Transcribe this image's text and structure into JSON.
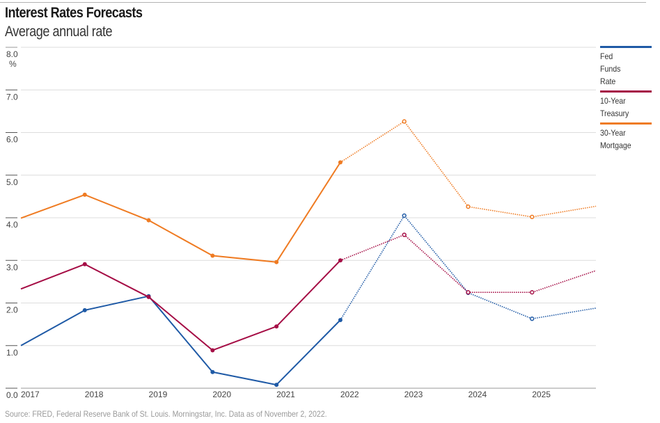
{
  "header": {
    "title": "Interest Rates Forecasts",
    "subtitle": "Average annual rate"
  },
  "footer": {
    "source": "Source: FRED, Federal Reserve Bank of St. Louis. Morningstar, Inc. Data as of November 2, 2022."
  },
  "chart_data": {
    "type": "line",
    "title": "Interest Rates Forecasts",
    "subtitle": "Average annual rate",
    "xlabel": "",
    "ylabel": "%",
    "x": [
      2017,
      2018,
      2019,
      2020,
      2021,
      2022,
      2023,
      2024,
      2025,
      2026
    ],
    "x_tick_labels": [
      "2017",
      "2018",
      "2019",
      "2020",
      "2021",
      "2022",
      "2023",
      "2024",
      "2025"
    ],
    "xlim": [
      2017,
      2026
    ],
    "ylim": [
      0,
      8
    ],
    "y_ticks": [
      0,
      1,
      2,
      3,
      4,
      5,
      6,
      7,
      8
    ],
    "y_tick_labels": [
      "0.0",
      "1.0",
      "2.0",
      "3.0",
      "4.0",
      "5.0",
      "6.0",
      "7.0",
      "8.0"
    ],
    "y_unit_label": "%",
    "grid": true,
    "legend_position": "right",
    "last_actual_year": 2022,
    "note": "Solid lines = actual; dotted lines with hollow markers = forecast",
    "series": [
      {
        "name": "Fed Funds Rate",
        "legend_lines": [
          "Fed",
          "Funds",
          "Rate"
        ],
        "color": "#1f5aa6",
        "values": [
          1.0,
          1.83,
          2.16,
          0.38,
          0.08,
          1.6,
          4.05,
          2.24,
          1.63,
          1.88
        ]
      },
      {
        "name": "10-Year Treasury",
        "legend_lines": [
          "10-Year",
          "Treasury"
        ],
        "color": "#a50d45",
        "values": [
          2.33,
          2.91,
          2.14,
          0.89,
          1.45,
          3.0,
          3.6,
          2.25,
          2.25,
          2.76
        ]
      },
      {
        "name": "30-Year Mortgage",
        "legend_lines": [
          "30-Year",
          "Mortgage"
        ],
        "color": "#ef7b22",
        "values": [
          3.99,
          4.54,
          3.94,
          3.11,
          2.96,
          5.3,
          6.26,
          4.26,
          4.02,
          4.27
        ]
      }
    ]
  }
}
